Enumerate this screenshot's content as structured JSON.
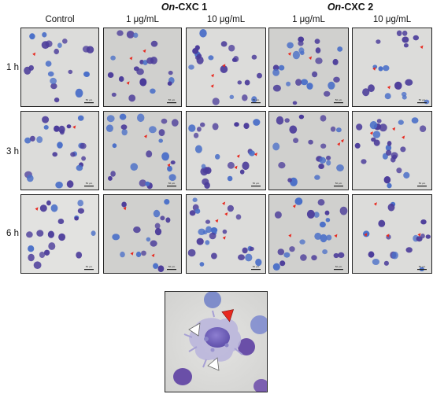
{
  "figure": {
    "group_headers": [
      {
        "italic": "On",
        "rest": "-CXC 1"
      },
      {
        "italic": "On",
        "rest": "-CXC 2"
      }
    ],
    "column_labels": [
      "Control",
      "1 μg/mL",
      "10 μg/mL",
      "1 μg/mL",
      "10 μg/mL"
    ],
    "row_labels": [
      "1 h",
      "3 h",
      "6 h"
    ],
    "scale_bar_label": "50 μm",
    "colors": {
      "background_gray": "#d6d6d4",
      "cell_purple": "#4b3c9a",
      "cell_blue": "#4a6fc8",
      "arrow_red": "#e8281e",
      "arrow_white": "#ffffff"
    }
  }
}
